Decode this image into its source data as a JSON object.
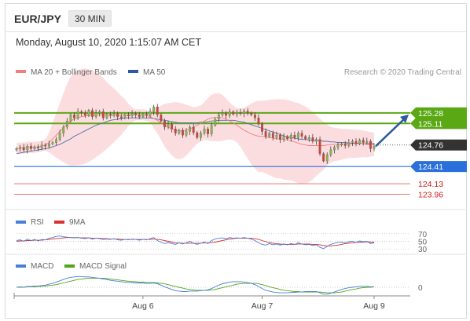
{
  "header": {
    "pair": "EUR/JPY",
    "timeframe": "30 MIN",
    "datetime": "Monday, August 10, 2020 1:15:07 AM CET"
  },
  "colors": {
    "resistance": "#5aa814",
    "support": "#2a6fdb",
    "extra": "#e8746f",
    "bollinger": "#fbd2d4",
    "ma20": "#f08080",
    "ma50": "#4f6fa8",
    "bull": "#8ab84a",
    "bear": "#d5403a",
    "current": "#333333",
    "rsi": "#4a7fd6",
    "rsi_ma": "#d93030",
    "macd": "#4a7fd6",
    "macd_signal": "#52a41a"
  },
  "chart_data": [
    {
      "type": "line",
      "title": "",
      "legend": [
        {
          "label": "MA 20 + Bollinger Bands",
          "color": "#f08080"
        },
        {
          "label": "MA 50",
          "color": "#2c5aa0"
        }
      ],
      "legend_position": "top-left",
      "credit": "Research © 2020 Trading Central",
      "x_ticks": [
        "Aug 6",
        "Aug 7",
        "Aug 9"
      ],
      "y_range": [
        123.8,
        125.7
      ],
      "grid": false,
      "levels": [
        {
          "label": "125.28",
          "value": 125.28,
          "kind": "resistance"
        },
        {
          "label": "125.11",
          "value": 125.11,
          "kind": "resistance"
        },
        {
          "label": "124.76",
          "value": 124.76,
          "kind": "current"
        },
        {
          "label": "124.41",
          "value": 124.41,
          "kind": "support"
        },
        {
          "label": "124.13",
          "value": 124.13,
          "kind": "extra"
        },
        {
          "label": "123.96",
          "value": 123.96,
          "kind": "extra"
        }
      ],
      "close": [
        124.7,
        124.72,
        124.68,
        124.74,
        124.7,
        124.73,
        124.71,
        124.76,
        124.74,
        124.78,
        124.8,
        124.85,
        124.95,
        125.05,
        125.15,
        125.25,
        125.2,
        125.3,
        125.28,
        125.24,
        125.32,
        125.22,
        125.28,
        125.3,
        125.2,
        125.26,
        125.24,
        125.27,
        125.22,
        125.2,
        125.25,
        125.23,
        125.27,
        125.25,
        125.22,
        125.26,
        125.24,
        125.3,
        125.38,
        125.25,
        125.15,
        125.05,
        125.1,
        125.02,
        124.95,
        125.0,
        124.92,
        124.98,
        125.05,
        124.96,
        124.88,
        124.95,
        125.02,
        124.94,
        125.08,
        125.18,
        125.25,
        125.28,
        125.24,
        125.3,
        125.26,
        125.29,
        125.27,
        125.31,
        125.28,
        125.25,
        125.2,
        125.1,
        124.98,
        124.9,
        124.95,
        124.88,
        124.92,
        124.85,
        124.9,
        124.86,
        124.92,
        124.88,
        124.95,
        124.9,
        124.86,
        124.88,
        124.82,
        124.85,
        124.62,
        124.5,
        124.6,
        124.68,
        124.72,
        124.76,
        124.78,
        124.75,
        124.8,
        124.82,
        124.78,
        124.84,
        124.8,
        124.82,
        124.7,
        124.74
      ],
      "ma20": [
        124.7,
        124.71,
        124.71,
        124.72,
        124.72,
        124.72,
        124.73,
        124.74,
        124.76,
        124.8,
        124.86,
        124.92,
        124.98,
        125.04,
        125.1,
        125.15,
        125.18,
        125.2,
        125.22,
        125.23,
        125.24,
        125.24,
        125.25,
        125.25,
        125.25,
        125.24,
        125.24,
        125.24,
        125.24,
        125.24,
        125.25,
        125.25,
        125.25,
        125.25,
        125.25,
        125.25,
        125.24,
        125.22,
        125.19,
        125.16,
        125.12,
        125.08,
        125.05,
        125.02,
        125.0,
        124.99,
        124.99,
        125.0,
        125.02,
        125.05,
        125.08,
        125.11,
        125.15,
        125.18,
        125.2,
        125.21,
        125.21,
        125.2,
        125.18,
        125.15,
        125.12,
        125.08,
        125.04,
        125.0,
        124.97,
        124.94,
        124.92,
        124.9,
        124.9,
        124.89,
        124.88,
        124.87,
        124.86,
        124.86,
        124.85,
        124.84,
        124.83,
        124.81,
        124.79,
        124.77,
        124.76,
        124.75,
        124.75,
        124.75,
        124.75,
        124.75,
        124.76,
        124.76,
        124.77,
        124.77,
        124.77,
        124.78,
        124.78,
        124.78,
        124.78,
        124.78,
        124.78,
        124.77,
        124.77,
        124.77
      ],
      "ma50": [
        124.62,
        124.63,
        124.64,
        124.65,
        124.66,
        124.67,
        124.68,
        124.69,
        124.7,
        124.71,
        124.73,
        124.75,
        124.77,
        124.8,
        124.83,
        124.86,
        124.9,
        124.93,
        124.96,
        124.99,
        125.02,
        125.05,
        125.08,
        125.1,
        125.12,
        125.14,
        125.16,
        125.17,
        125.18,
        125.19,
        125.2,
        125.2,
        125.2,
        125.2,
        125.2,
        125.2,
        125.2,
        125.2,
        125.19,
        125.18,
        125.17,
        125.16,
        125.15,
        125.14,
        125.13,
        125.12,
        125.12,
        125.12,
        125.12,
        125.12,
        125.12,
        125.13,
        125.13,
        125.14,
        125.15,
        125.15,
        125.16,
        125.16,
        125.16,
        125.16,
        125.16,
        125.15,
        125.14,
        125.13,
        125.11,
        125.09,
        125.07,
        125.05,
        125.03,
        125.01,
        124.99,
        124.97,
        124.95,
        124.93,
        124.91,
        124.89,
        124.88,
        124.87,
        124.86,
        124.85,
        124.85,
        124.84,
        124.84,
        124.83,
        124.83,
        124.82,
        124.82,
        124.81,
        124.81,
        124.8,
        124.8,
        124.8,
        124.79,
        124.79,
        124.79,
        124.79,
        124.78,
        124.78,
        124.78,
        124.78
      ]
    },
    {
      "type": "line",
      "legend": [
        {
          "label": "RSI",
          "color": "#4a7fd6"
        },
        {
          "label": "9MA",
          "color": "#d93030"
        }
      ],
      "y_ticks": [
        "70",
        "50",
        "30"
      ],
      "rsi": [
        52,
        54,
        50,
        56,
        52,
        55,
        51,
        55,
        54,
        58,
        60,
        63,
        64,
        62,
        61,
        60,
        59,
        60,
        58,
        57,
        59,
        56,
        58,
        57,
        55,
        56,
        55,
        57,
        54,
        53,
        55,
        54,
        56,
        55,
        53,
        55,
        54,
        57,
        60,
        52,
        48,
        44,
        47,
        44,
        42,
        46,
        43,
        46,
        50,
        45,
        42,
        45,
        48,
        44,
        52,
        56,
        58,
        59,
        57,
        60,
        58,
        59,
        58,
        60,
        58,
        56,
        52,
        46,
        42,
        40,
        44,
        41,
        43,
        40,
        43,
        41,
        44,
        42,
        46,
        43,
        41,
        42,
        39,
        41,
        34,
        31,
        37,
        42,
        45,
        47,
        48,
        46,
        49,
        50,
        47,
        51,
        49,
        50,
        44,
        46
      ],
      "rsi_ma": [
        50,
        51,
        51,
        52,
        52,
        53,
        53,
        53,
        54,
        55,
        56,
        57,
        58,
        59,
        60,
        60,
        60,
        60,
        59,
        59,
        59,
        58,
        58,
        58,
        57,
        57,
        56,
        56,
        56,
        55,
        55,
        55,
        55,
        55,
        55,
        55,
        55,
        55,
        56,
        55,
        54,
        52,
        50,
        48,
        46,
        46,
        45,
        45,
        45,
        45,
        45,
        45,
        46,
        46,
        47,
        48,
        50,
        52,
        54,
        56,
        57,
        58,
        58,
        58,
        58,
        58,
        57,
        55,
        52,
        49,
        47,
        45,
        44,
        43,
        42,
        42,
        42,
        42,
        43,
        43,
        43,
        43,
        42,
        42,
        41,
        39,
        38,
        38,
        39,
        40,
        42,
        44,
        45,
        46,
        47,
        48,
        48,
        49,
        48,
        48
      ]
    },
    {
      "type": "line",
      "legend": [
        {
          "label": "MACD",
          "color": "#4a7fd6"
        },
        {
          "label": "MACD Signal",
          "color": "#52a41a"
        }
      ],
      "y_ticks": [
        "0"
      ],
      "macd": [
        0.0,
        0.01,
        0.0,
        0.02,
        0.02,
        0.03,
        0.03,
        0.04,
        0.05,
        0.07,
        0.09,
        0.12,
        0.15,
        0.18,
        0.21,
        0.23,
        0.24,
        0.25,
        0.25,
        0.24,
        0.24,
        0.23,
        0.22,
        0.21,
        0.19,
        0.18,
        0.16,
        0.15,
        0.14,
        0.13,
        0.12,
        0.11,
        0.11,
        0.1,
        0.1,
        0.1,
        0.09,
        0.09,
        0.1,
        0.08,
        0.05,
        0.01,
        -0.02,
        -0.05,
        -0.08,
        -0.09,
        -0.1,
        -0.1,
        -0.09,
        -0.09,
        -0.09,
        -0.08,
        -0.07,
        -0.06,
        -0.03,
        0.01,
        0.05,
        0.08,
        0.1,
        0.12,
        0.13,
        0.13,
        0.13,
        0.12,
        0.11,
        0.09,
        0.06,
        0.02,
        -0.03,
        -0.07,
        -0.09,
        -0.11,
        -0.12,
        -0.13,
        -0.13,
        -0.13,
        -0.12,
        -0.12,
        -0.11,
        -0.11,
        -0.1,
        -0.1,
        -0.1,
        -0.1,
        -0.13,
        -0.16,
        -0.16,
        -0.14,
        -0.11,
        -0.08,
        -0.05,
        -0.03,
        -0.01,
        0.0,
        0.01,
        0.02,
        0.02,
        0.02,
        0.01,
        0.01
      ],
      "macd_signal": [
        0.0,
        0.0,
        0.0,
        0.01,
        0.01,
        0.01,
        0.02,
        0.02,
        0.03,
        0.04,
        0.05,
        0.06,
        0.08,
        0.1,
        0.12,
        0.14,
        0.16,
        0.18,
        0.19,
        0.2,
        0.21,
        0.21,
        0.21,
        0.21,
        0.21,
        0.2,
        0.19,
        0.18,
        0.17,
        0.16,
        0.15,
        0.14,
        0.13,
        0.13,
        0.12,
        0.12,
        0.11,
        0.11,
        0.11,
        0.1,
        0.09,
        0.08,
        0.06,
        0.04,
        0.02,
        0.0,
        -0.02,
        -0.04,
        -0.05,
        -0.06,
        -0.07,
        -0.07,
        -0.07,
        -0.07,
        -0.06,
        -0.05,
        -0.03,
        -0.01,
        0.01,
        0.03,
        0.05,
        0.07,
        0.08,
        0.09,
        0.09,
        0.09,
        0.09,
        0.08,
        0.06,
        0.04,
        0.01,
        -0.01,
        -0.03,
        -0.05,
        -0.07,
        -0.08,
        -0.09,
        -0.1,
        -0.1,
        -0.11,
        -0.11,
        -0.11,
        -0.11,
        -0.11,
        -0.11,
        -0.12,
        -0.13,
        -0.13,
        -0.13,
        -0.12,
        -0.11,
        -0.09,
        -0.07,
        -0.05,
        -0.04,
        -0.02,
        -0.01,
        0.0,
        0.0,
        0.01
      ]
    }
  ]
}
